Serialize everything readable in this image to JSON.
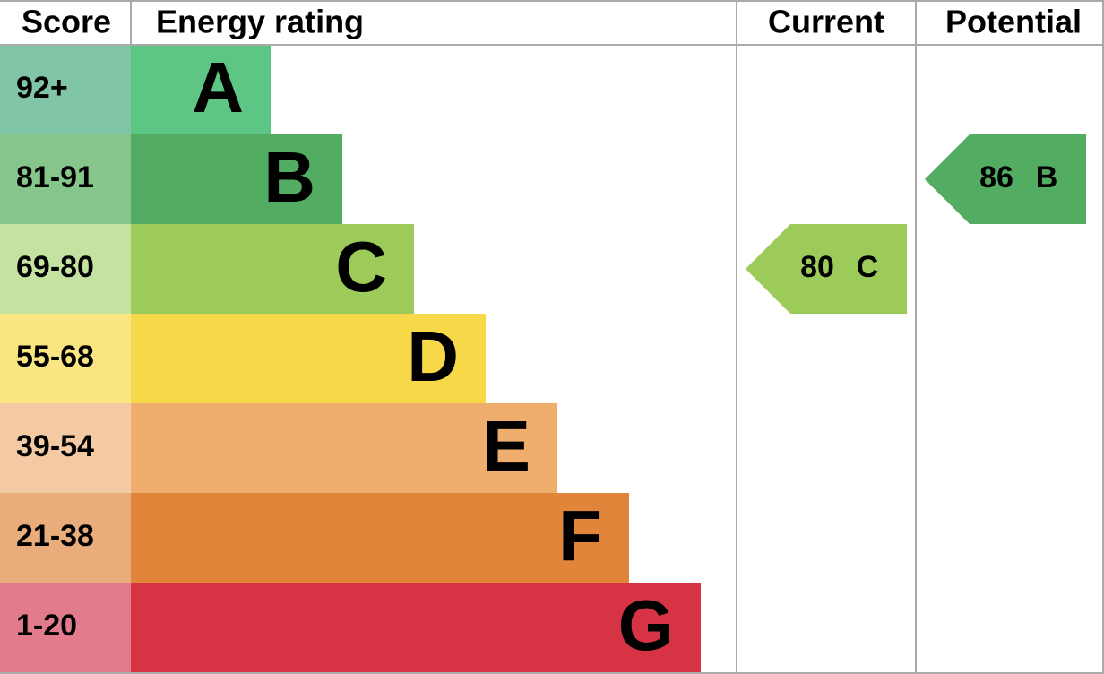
{
  "header": {
    "score": "Score",
    "rating": "Energy rating",
    "current": "Current",
    "potential": "Potential"
  },
  "bands": [
    {
      "range": "92+",
      "letter": "A",
      "color": "#5ec684",
      "light": "#80c6a6"
    },
    {
      "range": "81-91",
      "letter": "B",
      "color": "#52ad63",
      "light": "#86c68d"
    },
    {
      "range": "69-80",
      "letter": "C",
      "color": "#9ccb5a",
      "light": "#c6e2a0"
    },
    {
      "range": "55-68",
      "letter": "D",
      "color": "#f7d848",
      "light": "#fbe582"
    },
    {
      "range": "39-54",
      "letter": "E",
      "color": "#f0ae6e",
      "light": "#f4caa4"
    },
    {
      "range": "21-38",
      "letter": "F",
      "color": "#e0853a",
      "light": "#e9ad7c"
    },
    {
      "range": "1-20",
      "letter": "G",
      "color": "#d63444",
      "light": "#e27b8b"
    }
  ],
  "current": {
    "score": 80,
    "rating": "C"
  },
  "potential": {
    "score": 86,
    "rating": "B"
  }
}
